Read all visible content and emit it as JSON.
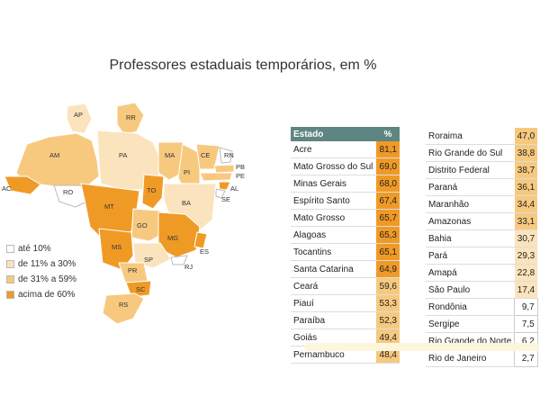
{
  "title": "Professores estaduais temporários, em %",
  "colors": {
    "header": "#5e8582",
    "low": "#ffffff",
    "mid1": "#fbe3bd",
    "mid2": "#f7c97f",
    "high": "#f09a26",
    "bar": "#fbf6dc"
  },
  "legend": [
    {
      "label": "até 10%",
      "color": "#ffffff"
    },
    {
      "label": "de 11% a 30%",
      "color": "#fbe3bd"
    },
    {
      "label": "de 31% a 59%",
      "color": "#f7c97f"
    },
    {
      "label": "acima de 60%",
      "color": "#f09a26"
    }
  ],
  "map_labels": [
    "AP",
    "RR",
    "AM",
    "PA",
    "MA",
    "CE",
    "RN",
    "PB",
    "PE",
    "AL",
    "SE",
    "PI",
    "AC",
    "RO",
    "MT",
    "TO",
    "BA",
    "GO",
    "MG",
    "ES",
    "MS",
    "SP",
    "RJ",
    "PR",
    "SC",
    "RS"
  ],
  "table": {
    "header": {
      "state": "Estado",
      "pct": "%"
    },
    "left": [
      {
        "state": "Acre",
        "value": "81,1",
        "color": "#f09a26"
      },
      {
        "state": "Mato Grosso do Sul",
        "value": "69,0",
        "color": "#f09a26"
      },
      {
        "state": "Minas Gerais",
        "value": "68,0",
        "color": "#f09a26"
      },
      {
        "state": "Espírito Santo",
        "value": "67,4",
        "color": "#f09a26"
      },
      {
        "state": "Mato Grosso",
        "value": "65,7",
        "color": "#f09a26"
      },
      {
        "state": "Alagoas",
        "value": "65,3",
        "color": "#f09a26"
      },
      {
        "state": "Tocantins",
        "value": "65,1",
        "color": "#f09a26"
      },
      {
        "state": "Santa Catarina",
        "value": "64,9",
        "color": "#f09a26"
      },
      {
        "state": "Ceará",
        "value": "59,6",
        "color": "#f7c97f"
      },
      {
        "state": "Piauí",
        "value": "53,3",
        "color": "#f7c97f"
      },
      {
        "state": "Paraíba",
        "value": "52,3",
        "color": "#f7c97f"
      },
      {
        "state": "Goiás",
        "value": "49,4",
        "color": "#f7c97f"
      },
      {
        "state": "Pernambuco",
        "value": "48,4",
        "color": "#f7c97f"
      }
    ],
    "right": [
      {
        "state": "Roraima",
        "value": "47,0",
        "color": "#f7c97f"
      },
      {
        "state": "Rio Grande do Sul",
        "value": "38,8",
        "color": "#f7c97f"
      },
      {
        "state": "Distrito Federal",
        "value": "38,7",
        "color": "#f7c97f"
      },
      {
        "state": "Paraná",
        "value": "36,1",
        "color": "#f7c97f"
      },
      {
        "state": "Maranhão",
        "value": "34,4",
        "color": "#f7c97f"
      },
      {
        "state": "Amazonas",
        "value": "33,1",
        "color": "#f7c97f"
      },
      {
        "state": "Bahia",
        "value": "30,7",
        "color": "#fbe3bd"
      },
      {
        "state": "Pará",
        "value": "29,3",
        "color": "#fbe3bd"
      },
      {
        "state": "Amapá",
        "value": "22,8",
        "color": "#fbe3bd"
      },
      {
        "state": "São Paulo",
        "value": "17,4",
        "color": "#fbe3bd"
      },
      {
        "state": "Rondônia",
        "value": "9,7",
        "color": "#ffffff"
      },
      {
        "state": "Sergipe",
        "value": "7,5",
        "color": "#ffffff"
      },
      {
        "state": "Rio Grande do Norte",
        "value": "6,2",
        "color": "#ffffff"
      },
      {
        "state": "Rio de Janeiro",
        "value": "2,7",
        "color": "#ffffff"
      }
    ]
  }
}
